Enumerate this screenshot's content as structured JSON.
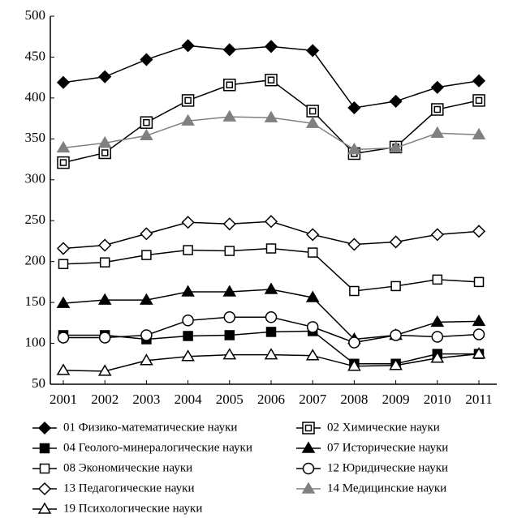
{
  "chart_data": {
    "type": "line",
    "categories": [
      "2001",
      "2002",
      "2003",
      "2004",
      "2005",
      "2006",
      "2007",
      "2008",
      "2009",
      "2010",
      "2011"
    ],
    "ylim": [
      50,
      500
    ],
    "yticks": [
      50,
      100,
      150,
      200,
      250,
      300,
      350,
      400,
      450,
      500
    ],
    "grid": false,
    "series": [
      {
        "name": "01 Физико-математические науки",
        "color": "#000000",
        "marker": "diamond",
        "filled": true,
        "values": [
          419,
          426,
          447,
          464,
          459,
          463,
          458,
          388,
          396,
          413,
          421
        ]
      },
      {
        "name": "02 Химические науки",
        "color": "#000000",
        "marker": "double-square",
        "filled": false,
        "values": [
          321,
          333,
          370,
          397,
          416,
          422,
          384,
          332,
          340,
          386,
          397
        ]
      },
      {
        "name": "04 Геолого-минералогические науки",
        "color": "#000000",
        "marker": "square",
        "filled": true,
        "values": [
          110,
          110,
          105,
          109,
          110,
          114,
          115,
          75,
          75,
          87,
          87
        ]
      },
      {
        "name": "07 Исторические науки",
        "color": "#000000",
        "marker": "triangle",
        "filled": true,
        "values": [
          149,
          153,
          153,
          163,
          163,
          166,
          156,
          105,
          110,
          126,
          127
        ]
      },
      {
        "name": "08 Экономические науки",
        "color": "#000000",
        "marker": "square",
        "filled": false,
        "values": [
          197,
          199,
          208,
          214,
          213,
          216,
          211,
          164,
          170,
          178,
          175
        ]
      },
      {
        "name": "12 Юридические науки",
        "color": "#000000",
        "marker": "circle",
        "filled": false,
        "values": [
          107,
          107,
          110,
          128,
          132,
          132,
          120,
          101,
          110,
          108,
          111
        ]
      },
      {
        "name": "13 Педагогические науки",
        "color": "#000000",
        "marker": "diamond",
        "filled": false,
        "values": [
          216,
          220,
          234,
          248,
          246,
          249,
          233,
          221,
          224,
          233,
          237
        ]
      },
      {
        "name": "14 Медицинские науки",
        "color": "#808080",
        "marker": "triangle",
        "filled": true,
        "values": [
          339,
          345,
          354,
          372,
          377,
          376,
          369,
          337,
          339,
          357,
          355
        ]
      },
      {
        "name": "19 Психологические науки",
        "color": "#000000",
        "marker": "triangle",
        "filled": false,
        "values": [
          67,
          66,
          79,
          84,
          86,
          86,
          85,
          72,
          73,
          82,
          87
        ]
      }
    ]
  }
}
